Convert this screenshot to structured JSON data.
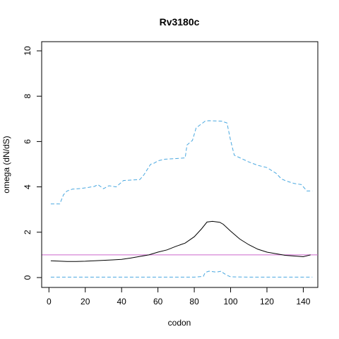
{
  "chart_data": {
    "type": "line",
    "title": "Rv3180c",
    "xlabel": "codon",
    "ylabel": "omega (dN/dS)",
    "xlim": [
      -4,
      148
    ],
    "ylim": [
      0,
      10
    ],
    "x_ticks": [
      "0",
      "20",
      "40",
      "60",
      "80",
      "100",
      "120",
      "140"
    ],
    "x_tick_values": [
      0,
      20,
      40,
      60,
      80,
      100,
      120,
      140
    ],
    "y_ticks": [
      "0",
      "2",
      "4",
      "6",
      "8",
      "10"
    ],
    "y_tick_values": [
      0,
      2,
      4,
      6,
      8,
      10
    ],
    "reference_line": {
      "y": 1,
      "color": "#cc66cc"
    },
    "series": [
      {
        "style": "solid",
        "color": "#000000",
        "x": [
          1,
          10,
          15,
          20,
          25,
          30,
          35,
          40,
          45,
          50,
          55,
          60,
          65,
          70,
          75,
          80,
          84,
          87,
          90,
          94,
          96,
          100,
          105,
          110,
          115,
          120,
          125,
          130,
          135,
          140,
          142,
          144
        ],
        "y": [
          0.74,
          0.71,
          0.71,
          0.72,
          0.74,
          0.76,
          0.78,
          0.8,
          0.86,
          0.93,
          1.0,
          1.12,
          1.22,
          1.38,
          1.52,
          1.8,
          2.15,
          2.45,
          2.48,
          2.44,
          2.35,
          2.05,
          1.7,
          1.45,
          1.25,
          1.12,
          1.05,
          0.98,
          0.95,
          0.92,
          0.96,
          1.0
        ]
      },
      {
        "style": "dashed",
        "color": "#4aa8e0",
        "x": [
          1,
          6,
          8,
          10,
          13,
          18,
          22,
          25,
          27,
          30,
          33,
          37,
          41,
          45,
          50,
          52,
          56,
          58,
          60,
          64,
          70,
          75,
          76,
          79,
          81,
          86,
          88,
          95,
          98,
          100,
          102,
          106,
          110,
          115,
          120,
          125,
          128,
          131,
          135,
          139,
          142,
          145
        ],
        "y": [
          3.25,
          3.25,
          3.65,
          3.82,
          3.9,
          3.93,
          3.98,
          4.02,
          4.1,
          3.92,
          4.05,
          4.0,
          4.28,
          4.3,
          4.32,
          4.5,
          5.0,
          5.05,
          5.15,
          5.22,
          5.25,
          5.28,
          5.85,
          6.05,
          6.6,
          6.9,
          6.92,
          6.9,
          6.82,
          6.05,
          5.4,
          5.25,
          5.1,
          4.95,
          4.85,
          4.6,
          4.35,
          4.25,
          4.15,
          4.1,
          3.82,
          3.82
        ]
      },
      {
        "style": "dashed",
        "color": "#4aa8e0",
        "x": [
          1,
          20,
          40,
          60,
          80,
          85,
          86,
          88,
          92,
          95,
          96,
          98,
          100,
          110,
          120,
          130,
          140,
          145
        ],
        "y": [
          0.02,
          0.02,
          0.02,
          0.02,
          0.02,
          0.05,
          0.22,
          0.28,
          0.24,
          0.28,
          0.2,
          0.1,
          0.03,
          0.02,
          0.02,
          0.02,
          0.02,
          0.02
        ]
      }
    ]
  }
}
